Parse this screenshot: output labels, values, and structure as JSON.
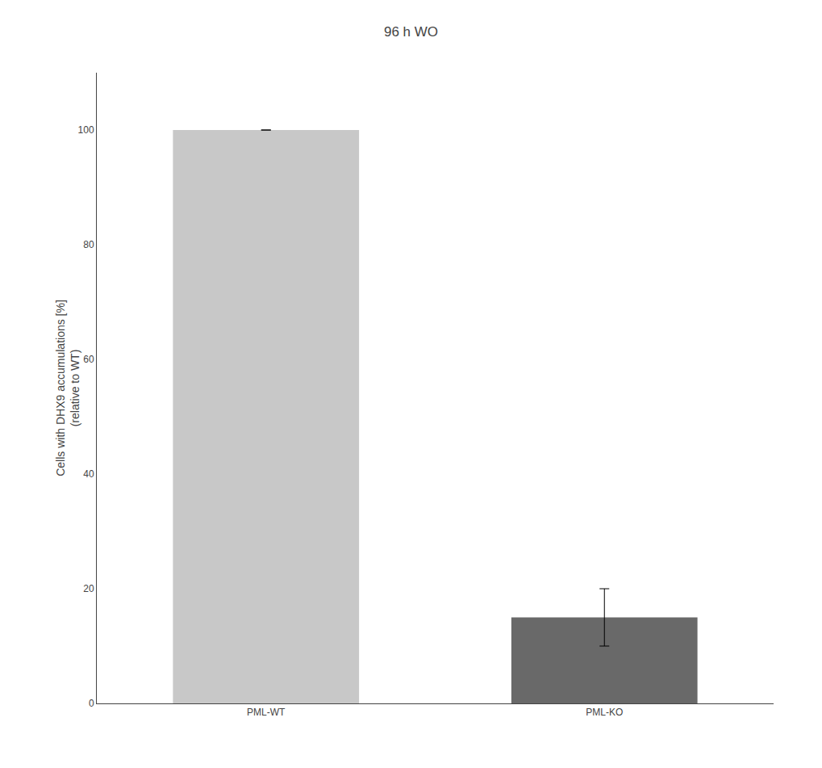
{
  "chart_data": {
    "type": "bar",
    "title": "96 h WO",
    "categories": [
      "PML-WT",
      "PML-KO"
    ],
    "values": [
      100,
      15
    ],
    "errors": [
      0,
      5
    ],
    "colors": [
      "#c8c8c8",
      "#696969"
    ],
    "ylabel": [
      "Cells with DHX9 accumulations [%]",
      "(relative to WT)"
    ],
    "ylim": [
      0,
      110
    ],
    "yticks": [
      0,
      20,
      40,
      60,
      80,
      100
    ],
    "grid": false
  }
}
